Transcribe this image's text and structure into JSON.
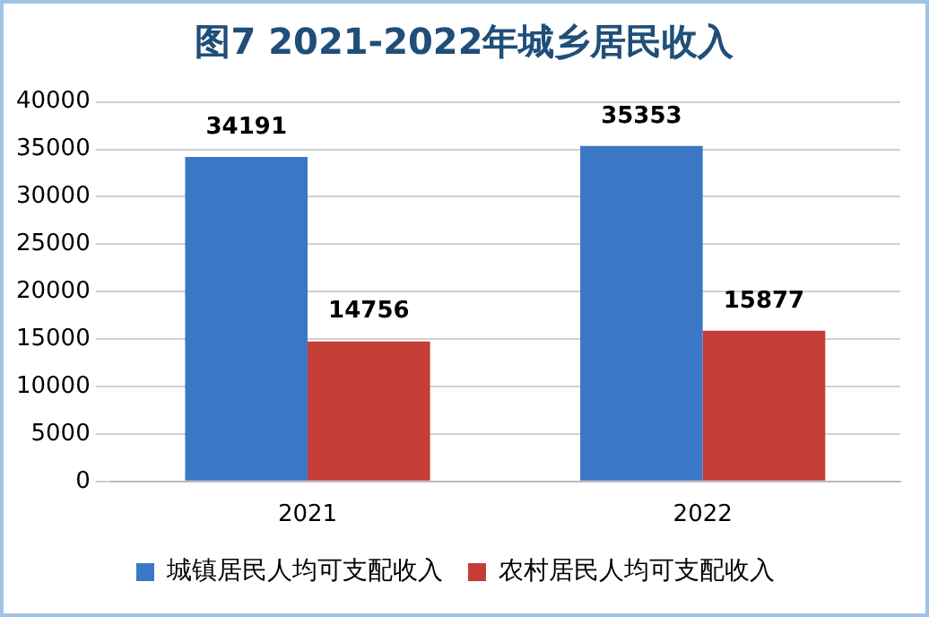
{
  "chart_data": {
    "type": "bar",
    "title": "图7 2021-2022年城乡居民收入",
    "categories": [
      "2021",
      "2022"
    ],
    "series": [
      {
        "name": "城镇居民人均可支配收入",
        "color": "#3a78c6",
        "values": [
          34191,
          35353
        ]
      },
      {
        "name": "农村居民人均可支配收入",
        "color": "#c63c36",
        "values": [
          14756,
          15877
        ]
      }
    ],
    "ylim": [
      0,
      40000
    ],
    "yticks": [
      0,
      5000,
      10000,
      15000,
      20000,
      25000,
      30000,
      35000,
      40000
    ],
    "grid": "y",
    "legend": "bottom",
    "data_labels": true
  }
}
